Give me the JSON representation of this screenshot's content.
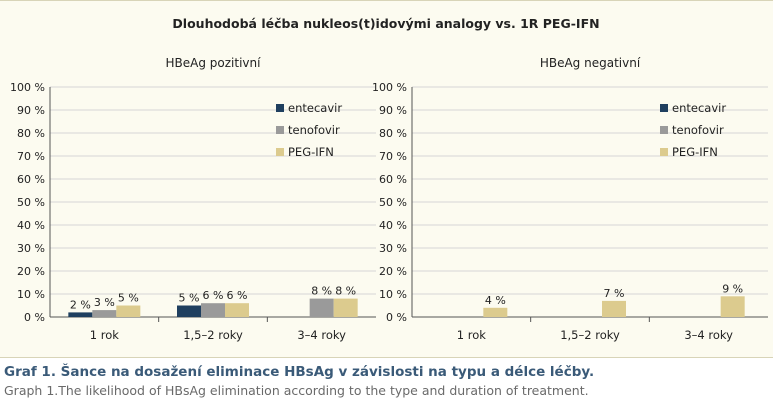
{
  "figure_title": "Dlouhodobá léčba nukleos(t)idovými analogy vs. 1R PEG-IFN",
  "caption": {
    "title": "Graf 1. Šance na dosažení eliminace HBsAg v závislosti na typu a délce léčby.",
    "subtitle": "Graph 1.The likelihood of HBsAg elimination according to the type and duration of treatment."
  },
  "colors": {
    "entecavir": "#1f3f5f",
    "tenofovir": "#9a9a9a",
    "peg_ifn": "#dccb8e"
  },
  "chart_data": [
    {
      "type": "bar",
      "title": "HBeAg pozitivní",
      "categories": [
        "1 rok",
        "1,5–2 roky",
        "3–4 roky"
      ],
      "yticks": [
        "0 %",
        "10 %",
        "20 %",
        "30 %",
        "40 %",
        "50 %",
        "60 %",
        "70 %",
        "80 %",
        "90 %",
        "100 %"
      ],
      "ylim": [
        0,
        100
      ],
      "grid": true,
      "legend": "right",
      "series": [
        {
          "name": "entecavir",
          "values": [
            2,
            5,
            null
          ],
          "labels": [
            "2 %",
            "5 %",
            ""
          ]
        },
        {
          "name": "tenofovir",
          "values": [
            3,
            6,
            8
          ],
          "labels": [
            "3 %",
            "6 %",
            "8 %"
          ]
        },
        {
          "name": "PEG-IFN",
          "values": [
            5,
            6,
            8
          ],
          "labels": [
            "5 %",
            "6 %",
            "8 %"
          ]
        }
      ]
    },
    {
      "type": "bar",
      "title": "HBeAg negativní",
      "categories": [
        "1 rok",
        "1,5–2 roky",
        "3–4 roky"
      ],
      "yticks": [
        "0 %",
        "10 %",
        "20 %",
        "30 %",
        "40 %",
        "50 %",
        "60 %",
        "70 %",
        "80 %",
        "90 %",
        "100 %"
      ],
      "ylim": [
        0,
        100
      ],
      "grid": true,
      "legend": "right",
      "series": [
        {
          "name": "entecavir",
          "values": [
            null,
            null,
            null
          ],
          "labels": [
            "",
            "",
            ""
          ]
        },
        {
          "name": "tenofovir",
          "values": [
            null,
            null,
            null
          ],
          "labels": [
            "",
            "",
            ""
          ]
        },
        {
          "name": "PEG-IFN",
          "values": [
            4,
            7,
            9
          ],
          "labels": [
            "4 %",
            "7 %",
            "9 %"
          ]
        }
      ]
    }
  ]
}
